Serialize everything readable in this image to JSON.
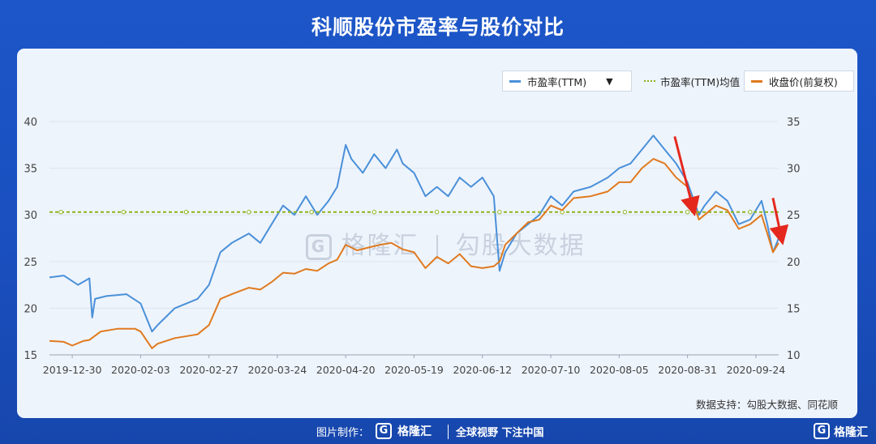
{
  "title": "科顺股份市盈率与股价对比",
  "legend": {
    "pe_label": "市盈率(TTM)",
    "pe_avg_label": "市盈率(TTM)均值",
    "price_label": "收盘价(前复权)"
  },
  "watermark": {
    "brand": "格隆汇",
    "text": "勾股大数据"
  },
  "source": "数据支持：勾股大数据、同花顺",
  "footer": {
    "made_by": "图片制作：",
    "brand": "格隆汇",
    "slogan": "全球视野 下注中国"
  },
  "colors": {
    "pe": "#4a90d9",
    "price": "#e07a1f",
    "avg": "#8fb31a",
    "arrow": "#e5281e"
  },
  "chart_data": {
    "type": "line",
    "x_tick_labels": [
      "2019-12-30",
      "2020-02-03",
      "2020-02-27",
      "2020-03-24",
      "2020-04-20",
      "2020-05-19",
      "2020-06-12",
      "2020-07-10",
      "2020-08-05",
      "2020-08-31",
      "2020-09-24"
    ],
    "x_tick_index": [
      8,
      32,
      56,
      80,
      104,
      128,
      152,
      176,
      200,
      224,
      248
    ],
    "y_left": {
      "ticks": [
        "15",
        "20",
        "25",
        "30",
        "35",
        "40"
      ],
      "lim": [
        15,
        40
      ]
    },
    "y_right": {
      "ticks": [
        "10",
        "15",
        "20",
        "25",
        "30",
        "35"
      ],
      "lim": [
        10,
        35
      ]
    },
    "series": [
      {
        "name": "市盈率(TTM)",
        "axis": "left",
        "points": [
          [
            0,
            23.3
          ],
          [
            5,
            23.5
          ],
          [
            10,
            22.5
          ],
          [
            14,
            23.2
          ],
          [
            15,
            19
          ],
          [
            16,
            21
          ],
          [
            20,
            21.3
          ],
          [
            27,
            21.5
          ],
          [
            32,
            20.5
          ],
          [
            36,
            17.5
          ],
          [
            38,
            18.2
          ],
          [
            44,
            20
          ],
          [
            52,
            21
          ],
          [
            56,
            22.5
          ],
          [
            60,
            26
          ],
          [
            64,
            27
          ],
          [
            70,
            28
          ],
          [
            74,
            27
          ],
          [
            78,
            29
          ],
          [
            82,
            31
          ],
          [
            86,
            30
          ],
          [
            90,
            32
          ],
          [
            94,
            30
          ],
          [
            98,
            31.5
          ],
          [
            101,
            33
          ],
          [
            104,
            37.5
          ],
          [
            106,
            36
          ],
          [
            110,
            34.5
          ],
          [
            114,
            36.5
          ],
          [
            118,
            35
          ],
          [
            122,
            37
          ],
          [
            124,
            35.5
          ],
          [
            128,
            34.5
          ],
          [
            132,
            32
          ],
          [
            136,
            33
          ],
          [
            140,
            32
          ],
          [
            144,
            34
          ],
          [
            148,
            33
          ],
          [
            152,
            34
          ],
          [
            156,
            32
          ],
          [
            158,
            24
          ],
          [
            160,
            26
          ],
          [
            164,
            28
          ],
          [
            168,
            29
          ],
          [
            172,
            30
          ],
          [
            176,
            32
          ],
          [
            180,
            31
          ],
          [
            184,
            32.5
          ],
          [
            190,
            33
          ],
          [
            196,
            34
          ],
          [
            200,
            35
          ],
          [
            204,
            35.5
          ],
          [
            208,
            37
          ],
          [
            212,
            38.5
          ],
          [
            216,
            37
          ],
          [
            220,
            35.5
          ],
          [
            224,
            33.5
          ],
          [
            228,
            30
          ],
          [
            230,
            31
          ],
          [
            234,
            32.5
          ],
          [
            238,
            31.5
          ],
          [
            242,
            29
          ],
          [
            246,
            29.5
          ],
          [
            250,
            31.5
          ],
          [
            252,
            29
          ],
          [
            254,
            26
          ],
          [
            256,
            27.5
          ]
        ]
      },
      {
        "name": "市盈率(TTM)均值",
        "axis": "left",
        "points": [
          [
            0,
            30.3
          ],
          [
            256,
            30.3
          ]
        ]
      },
      {
        "name": "收盘价(前复权)",
        "axis": "right",
        "points": [
          [
            0,
            11.5
          ],
          [
            5,
            11.4
          ],
          [
            8,
            11
          ],
          [
            12,
            11.5
          ],
          [
            14,
            11.6
          ],
          [
            18,
            12.5
          ],
          [
            24,
            12.8
          ],
          [
            30,
            12.8
          ],
          [
            32,
            12.5
          ],
          [
            36,
            10.7
          ],
          [
            38,
            11.2
          ],
          [
            44,
            11.8
          ],
          [
            52,
            12.2
          ],
          [
            56,
            13.2
          ],
          [
            60,
            16
          ],
          [
            64,
            16.5
          ],
          [
            70,
            17.2
          ],
          [
            74,
            17
          ],
          [
            78,
            17.8
          ],
          [
            82,
            18.8
          ],
          [
            86,
            18.7
          ],
          [
            90,
            19.2
          ],
          [
            94,
            19
          ],
          [
            98,
            19.8
          ],
          [
            101,
            20.2
          ],
          [
            104,
            21.8
          ],
          [
            108,
            21.2
          ],
          [
            112,
            21.5
          ],
          [
            116,
            21.8
          ],
          [
            120,
            22
          ],
          [
            124,
            21.3
          ],
          [
            128,
            21
          ],
          [
            132,
            19.3
          ],
          [
            136,
            20.5
          ],
          [
            140,
            19.8
          ],
          [
            144,
            20.8
          ],
          [
            148,
            19.5
          ],
          [
            152,
            19.3
          ],
          [
            156,
            19.5
          ],
          [
            158,
            20
          ],
          [
            160,
            21.8
          ],
          [
            164,
            23
          ],
          [
            168,
            24.2
          ],
          [
            172,
            24.5
          ],
          [
            176,
            26
          ],
          [
            180,
            25.5
          ],
          [
            184,
            26.8
          ],
          [
            190,
            27
          ],
          [
            196,
            27.5
          ],
          [
            200,
            28.5
          ],
          [
            204,
            28.5
          ],
          [
            208,
            30
          ],
          [
            212,
            31
          ],
          [
            216,
            30.5
          ],
          [
            220,
            29
          ],
          [
            224,
            28
          ],
          [
            228,
            24.5
          ],
          [
            230,
            25
          ],
          [
            234,
            26
          ],
          [
            238,
            25.5
          ],
          [
            242,
            23.5
          ],
          [
            246,
            24
          ],
          [
            250,
            25
          ],
          [
            252,
            23
          ],
          [
            254,
            21
          ],
          [
            256,
            22
          ]
        ]
      }
    ],
    "annotations": [
      {
        "type": "arrow",
        "from": [
          219.5,
          38.4
        ],
        "to": [
          226,
          30.6
        ]
      },
      {
        "type": "arrow",
        "from": [
          254,
          31.8
        ],
        "to": [
          257,
          27.5
        ]
      }
    ]
  }
}
